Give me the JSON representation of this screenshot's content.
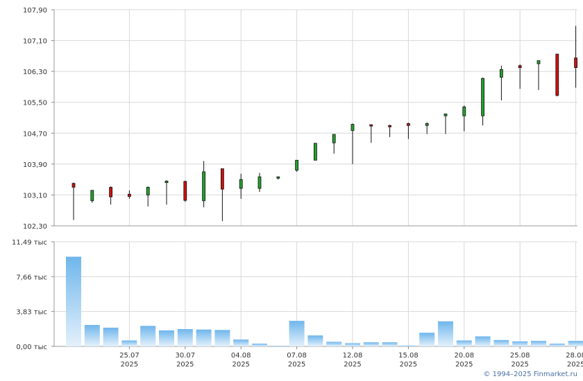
{
  "chart_data": [
    {
      "type": "candlestick",
      "x": [
        "22.07",
        "23.07",
        "24.07",
        "25.07",
        "28.07",
        "29.07",
        "30.07",
        "31.07",
        "01.08",
        "04.08",
        "05.08",
        "06.08",
        "07.08",
        "08.08",
        "11.08",
        "12.08",
        "13.08",
        "14.08",
        "15.08",
        "18.08",
        "19.08",
        "20.08",
        "21.08",
        "22.08",
        "25.08",
        "26.08",
        "27.08",
        "28.08"
      ],
      "x_ticks": [
        "25.07",
        "30.07",
        "04.08",
        "07.08",
        "12.08",
        "15.08",
        "20.08",
        "25.08",
        "28.08"
      ],
      "x_ticks_year": "2025",
      "y_ticks": [
        "107,90",
        "107,10",
        "106,30",
        "105,50",
        "104,70",
        "103,90",
        "103,10",
        "102,30"
      ],
      "ylim": [
        102.3,
        107.9
      ],
      "open": [
        103.4,
        102.95,
        103.3,
        103.12,
        103.1,
        103.42,
        103.45,
        102.95,
        103.78,
        103.27,
        103.27,
        103.55,
        103.74,
        104.0,
        104.45,
        104.77,
        104.92,
        104.9,
        104.95,
        104.9,
        105.15,
        105.15,
        105.15,
        106.15,
        106.45,
        106.5,
        106.75,
        106.65
      ],
      "high": [
        103.42,
        103.22,
        103.32,
        103.22,
        103.32,
        103.48,
        103.47,
        103.98,
        103.78,
        103.65,
        103.67,
        103.58,
        104.0,
        104.44,
        104.67,
        104.95,
        104.93,
        104.92,
        104.97,
        104.98,
        105.2,
        105.42,
        106.14,
        106.45,
        106.48,
        106.58,
        106.76,
        107.48
      ],
      "low": [
        102.45,
        102.9,
        102.85,
        103.0,
        102.8,
        102.85,
        102.92,
        102.78,
        102.42,
        103.0,
        103.18,
        103.5,
        103.7,
        104.0,
        104.17,
        103.9,
        104.45,
        104.6,
        104.55,
        104.68,
        104.68,
        104.75,
        104.9,
        105.55,
        105.85,
        105.82,
        105.65,
        105.88
      ],
      "close": [
        103.3,
        103.22,
        103.05,
        103.06,
        103.3,
        103.46,
        102.96,
        103.7,
        103.25,
        103.5,
        103.57,
        103.57,
        104.0,
        104.44,
        104.67,
        104.93,
        104.9,
        104.88,
        104.9,
        104.95,
        105.2,
        105.38,
        106.12,
        106.35,
        106.4,
        106.58,
        105.68,
        106.4
      ],
      "up_color": "#22a02c",
      "down_color": "#cc1111"
    },
    {
      "type": "bar",
      "x": [
        "22.07",
        "23.07",
        "24.07",
        "25.07",
        "28.07",
        "29.07",
        "30.07",
        "31.07",
        "01.08",
        "04.08",
        "05.08",
        "06.08",
        "07.08",
        "08.08",
        "11.08",
        "12.08",
        "13.08",
        "14.08",
        "15.08",
        "18.08",
        "19.08",
        "20.08",
        "21.08",
        "22.08",
        "25.08",
        "26.08",
        "27.08",
        "28.08"
      ],
      "values": [
        9.85,
        2.35,
        2.05,
        0.65,
        2.25,
        1.75,
        1.9,
        1.85,
        1.8,
        0.75,
        0.3,
        0.0,
        2.8,
        1.2,
        0.5,
        0.35,
        0.45,
        0.45,
        0.1,
        1.5,
        2.75,
        0.65,
        1.1,
        0.7,
        0.55,
        0.6,
        0.3,
        0.6
      ],
      "unit": "тыс",
      "y_ticks": [
        "11,49 тыс",
        "7,66 тыс",
        "3,83 тыс",
        "0,00 тыс"
      ],
      "ylim": [
        0,
        11.49
      ],
      "color": "#6fb6ec"
    }
  ],
  "copyright": "© 1994–2025 Finmarket.ru"
}
